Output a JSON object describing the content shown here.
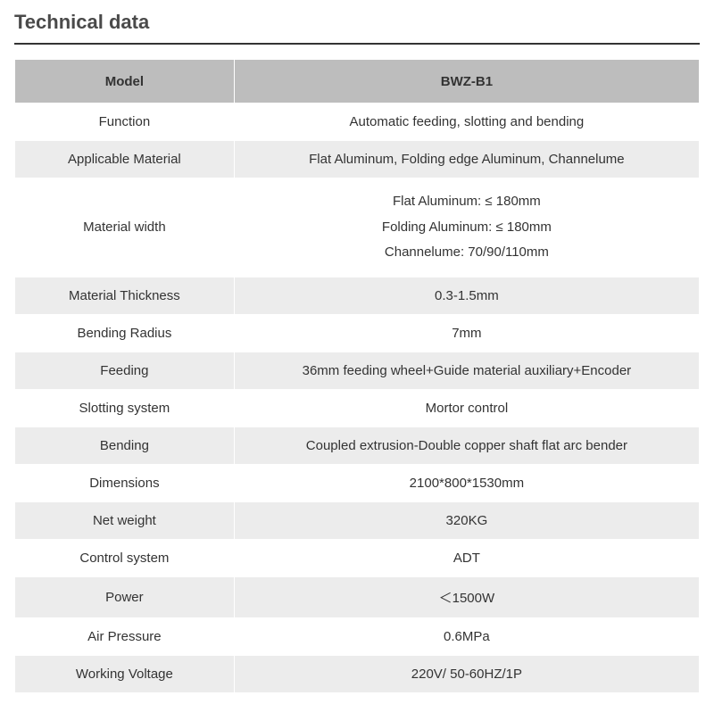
{
  "title": "Technical data",
  "table": {
    "header": {
      "label": "Model",
      "value": "BWZ-B1"
    },
    "rows": [
      {
        "label": "Function",
        "value": "Automatic feeding, slotting and bending"
      },
      {
        "label": "Applicable Material",
        "value": "Flat Aluminum, Folding edge Aluminum, Channelume"
      },
      {
        "label": "Material width",
        "value": "Flat Aluminum: ≤ 180mm\nFolding Aluminum: ≤ 180mm\nChannelume: 70/90/110mm"
      },
      {
        "label": "Material Thickness",
        "value": "0.3-1.5mm"
      },
      {
        "label": "Bending Radius",
        "value": "7mm"
      },
      {
        "label": "Feeding",
        "value": "36mm feeding wheel+Guide material auxiliary+Encoder"
      },
      {
        "label": "Slotting system",
        "value": "Mortor control"
      },
      {
        "label": "Bending",
        "value": "Coupled extrusion-Double copper shaft flat arc bender"
      },
      {
        "label": "Dimensions",
        "value": "2100*800*1530mm"
      },
      {
        "label": "Net weight",
        "value": "320KG"
      },
      {
        "label": "Control system",
        "value": "ADT"
      },
      {
        "label": "Power",
        "value": "＜1500W"
      },
      {
        "label": "Air Pressure",
        "value": "0.6MPa"
      },
      {
        "label": "Working Voltage",
        "value": "220V/ 50-60HZ/1P"
      }
    ]
  },
  "style": {
    "title_color": "#4a4a4a",
    "title_fontsize": 22,
    "title_border_color": "#333333",
    "header_bg": "#bdbdbd",
    "row_even_bg": "#ececec",
    "row_odd_bg": "#ffffff",
    "text_color": "#333333",
    "body_fontsize": 15,
    "col_label_width_pct": 32,
    "col_value_width_pct": 68,
    "row_padding_v": 12,
    "multiline_line_height": 1.9
  }
}
